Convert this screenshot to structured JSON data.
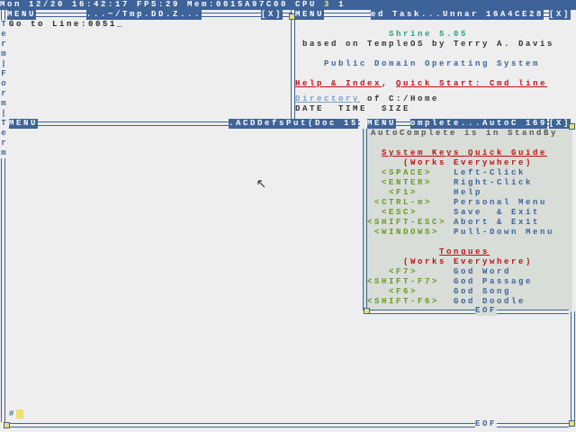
{
  "status_bar": {
    "text": "Mon 12/20 16:42:17 FPS:29 Mem:0015A97C00 CPU ",
    "cpu_a": "3",
    "cpu_b": "1"
  },
  "colors": {
    "blue": "#3d6399",
    "background": "#eeeeee"
  },
  "left_window": {
    "menu": "MENU",
    "title": "...~/Tmp.DD.Z...",
    "close": "[X]",
    "content": "Go to Line:0051_",
    "side_label": "Term|Form|Term"
  },
  "right_window": {
    "menu": "MENU",
    "title": "ed Task...Unnar 16A4CE28",
    "close": "[X]",
    "lines": {
      "title": "Shrine 5.05",
      "based": "based on TempleOS by Terry A. Davis",
      "pd": "Public Domain Operating System",
      "help": "Help & Index",
      "comma": ",",
      "quick": "Quick Start: Cmd line",
      "dir_link": "Directory",
      "dir_rest": " of C:/Home",
      "cols": "DATE  TIME  SIZE"
    }
  },
  "main_window": {
    "menu": "MENU",
    "title": ".ACDDefsPut(Doc 15",
    "prompt": "#",
    "eof": "EOF"
  },
  "autocomplete": {
    "menu": "MENU",
    "title": "omplete...AutoC 169",
    "close": "[X]",
    "standby": "AutoComplete is in StandBy",
    "keys_title": "System Keys Quick Guide",
    "works": "(Works Everywhere)",
    "keys": [
      {
        "k": "  <SPACE>  ",
        "v": "Left-Click"
      },
      {
        "k": "  <ENTER>  ",
        "v": "Right-Click"
      },
      {
        "k": "   <F1>    ",
        "v": "Help"
      },
      {
        "k": " <CTRL-m>  ",
        "v": "Personal Menu"
      },
      {
        "k": "  <ESC>    ",
        "v": "Save  & Exit"
      },
      {
        "k": "<SHIFT-ESC>",
        "v": "Abort & Exit"
      },
      {
        "k": " <WINDOWS> ",
        "v": "Pull-Down Menu"
      }
    ],
    "tongues_title": "Tongues",
    "tongues_works": "(Works Everywhere)",
    "tongues": [
      {
        "k": "   <F7>    ",
        "v": "God Word"
      },
      {
        "k": "<SHIFT-F7> ",
        "v": "God Passage"
      },
      {
        "k": "   <F6>    ",
        "v": "God Song"
      },
      {
        "k": "<SHIFT-F6> ",
        "v": "God Doodle"
      }
    ],
    "eof": "EOF"
  }
}
